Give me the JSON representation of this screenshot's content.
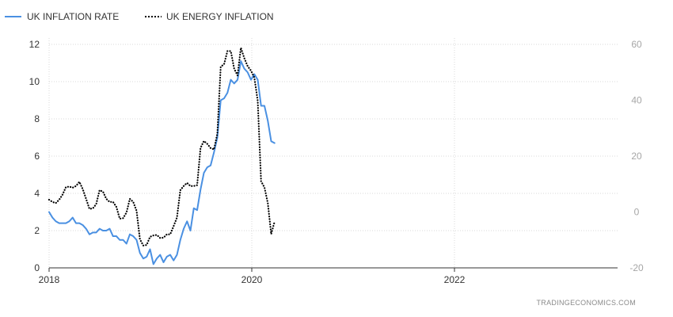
{
  "chart_data": {
    "type": "line",
    "title": "",
    "xlabel": "",
    "ylabel": "",
    "x_ticks": [
      "2018",
      "2020",
      "2022"
    ],
    "y_left": {
      "min": 0,
      "max": 12,
      "ticks": [
        "0",
        "2",
        "4",
        "6",
        "8",
        "10",
        "12"
      ]
    },
    "y_right": {
      "min": -20,
      "max": 60,
      "ticks": [
        "-20",
        "0",
        "20",
        "40",
        "60"
      ]
    },
    "grid": true,
    "legend_position": "top-left",
    "watermark": "TRADINGECONOMICS.COM",
    "series": [
      {
        "name": "UK INFLATION RATE",
        "axis": "left",
        "style": "solid",
        "color": "#4a90e2",
        "start": "2018-01",
        "values": [
          3.0,
          2.7,
          2.5,
          2.4,
          2.4,
          2.4,
          2.5,
          2.7,
          2.4,
          2.4,
          2.3,
          2.1,
          1.8,
          1.9,
          1.9,
          2.1,
          2.0,
          2.0,
          2.1,
          1.7,
          1.7,
          1.5,
          1.5,
          1.3,
          1.8,
          1.7,
          1.5,
          0.8,
          0.5,
          0.6,
          1.0,
          0.2,
          0.5,
          0.7,
          0.3,
          0.6,
          0.7,
          0.4,
          0.7,
          1.5,
          2.1,
          2.5,
          2.0,
          3.2,
          3.1,
          4.2,
          5.1,
          5.4,
          5.5,
          6.2,
          7.0,
          9.0,
          9.1,
          9.4,
          10.1,
          9.9,
          10.1,
          11.1,
          10.7,
          10.5,
          10.1,
          10.4,
          10.1,
          8.7,
          8.7,
          7.9,
          6.8,
          6.7
        ]
      },
      {
        "name": "UK ENERGY INFLATION",
        "axis": "right",
        "style": "dotted",
        "color": "#000000",
        "start": "2018-01",
        "values": [
          4.4,
          3.6,
          3.2,
          4.4,
          6.2,
          8.9,
          9.1,
          8.7,
          9.3,
          10.8,
          8.2,
          4.7,
          1.1,
          1.3,
          2.8,
          7.8,
          7.3,
          4.7,
          3.6,
          3.6,
          1.8,
          -2.4,
          -2.2,
          -0.2,
          4.7,
          3.6,
          0.4,
          -9.8,
          -12.0,
          -11.8,
          -8.9,
          -8.4,
          -8.2,
          -9.3,
          -9.2,
          -8.0,
          -8.0,
          -5.1,
          -2.0,
          7.8,
          9.3,
          10.4,
          9.3,
          9.3,
          9.6,
          22.9,
          25.4,
          24.4,
          22.9,
          22.4,
          28.0,
          52.0,
          52.9,
          57.6,
          57.6,
          51.3,
          48.9,
          58.8,
          55.1,
          52.2,
          50.6,
          48.1,
          39.8,
          11.0,
          8.8,
          3.2,
          -7.9,
          -3.5
        ]
      }
    ]
  }
}
